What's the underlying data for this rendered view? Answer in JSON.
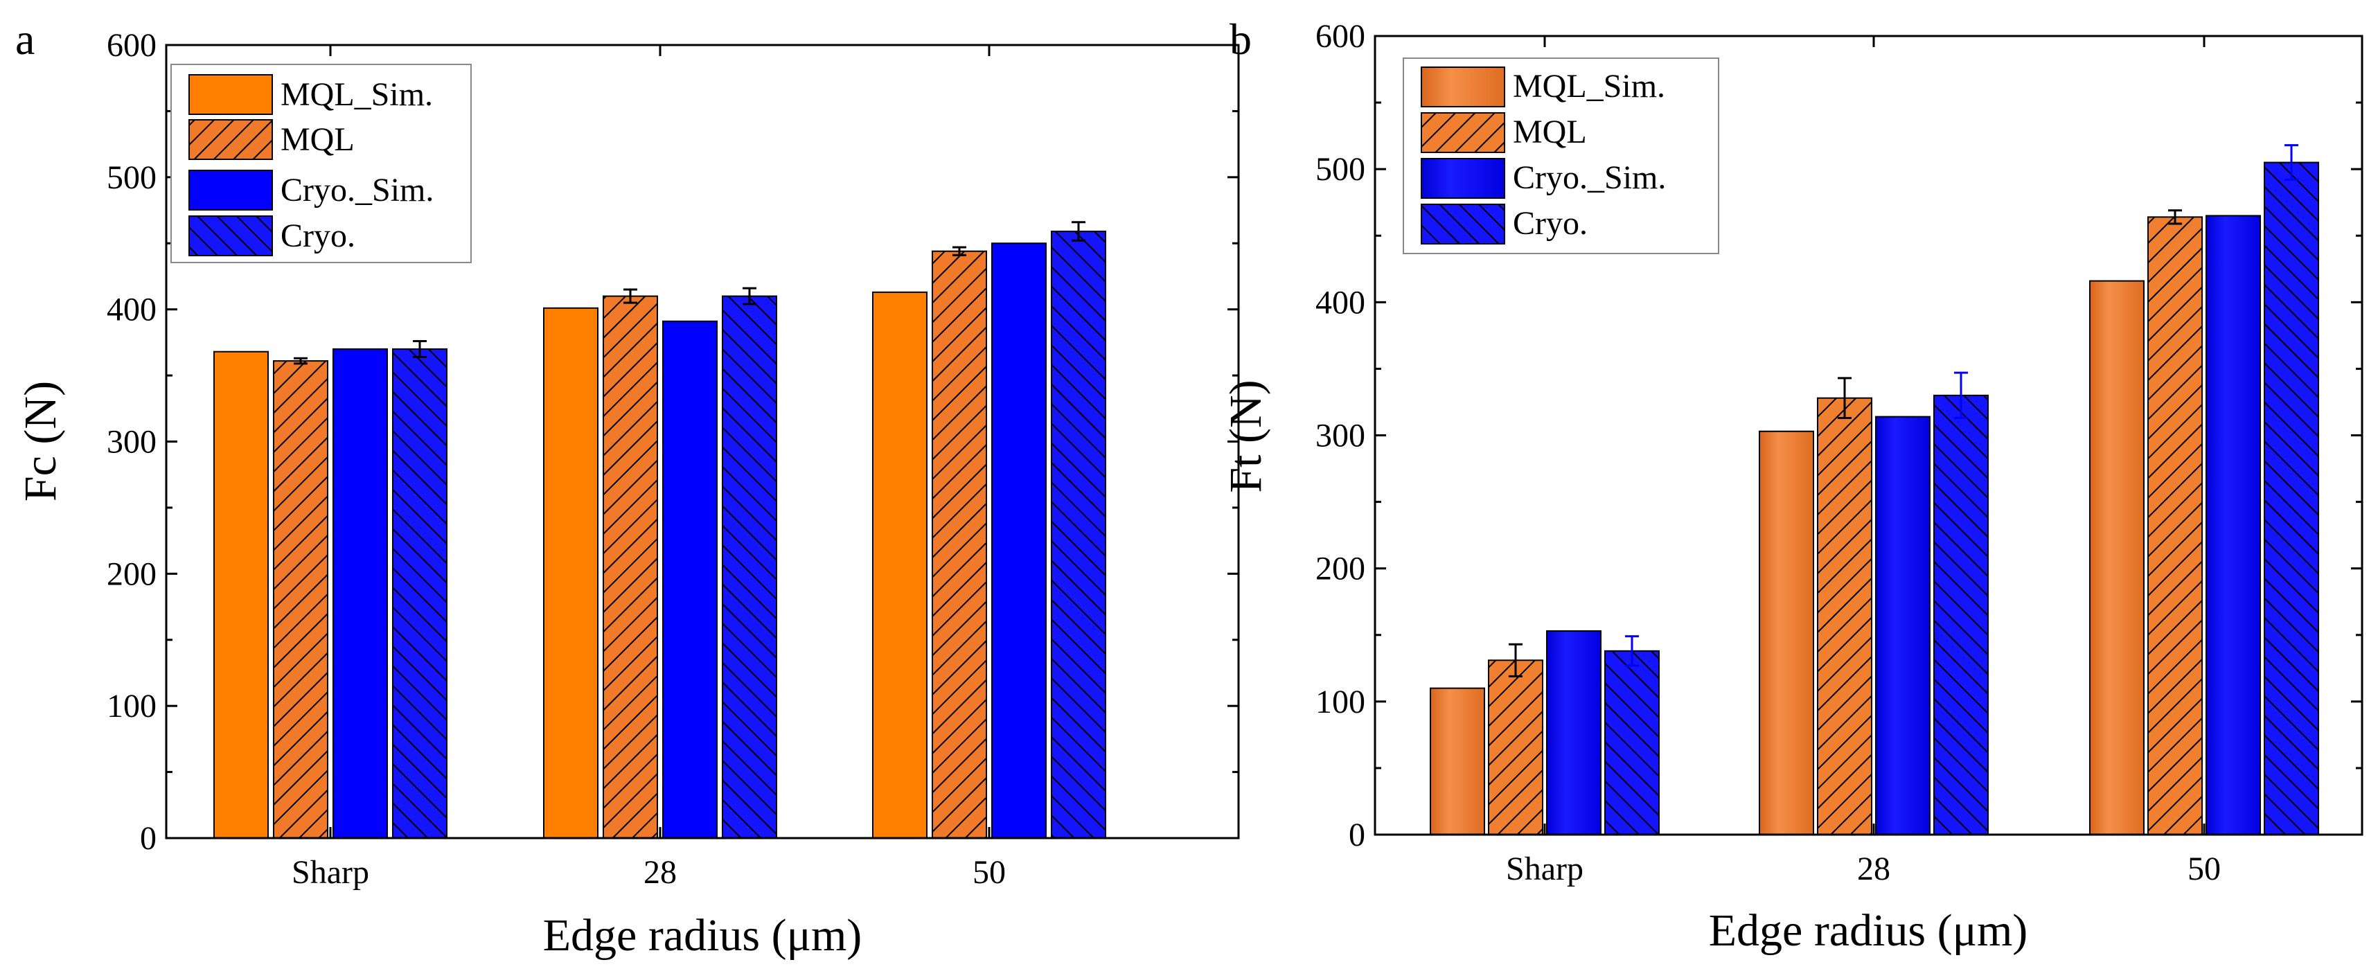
{
  "chart_data": [
    {
      "panel": "a",
      "type": "bar",
      "categories": [
        "Sharp",
        "28",
        "50"
      ],
      "series": [
        {
          "name": "MQL_Sim.",
          "key": "mql_sim",
          "values": [
            368,
            401,
            413
          ],
          "errors": [
            0,
            0,
            0
          ]
        },
        {
          "name": "MQL",
          "key": "mql",
          "values": [
            361,
            410,
            444
          ],
          "errors": [
            2,
            5,
            3
          ]
        },
        {
          "name": "Cryo._Sim.",
          "key": "cryo_sim",
          "values": [
            370,
            391,
            450
          ],
          "errors": [
            0,
            0,
            0
          ]
        },
        {
          "name": "Cryo.",
          "key": "cryo",
          "values": [
            370,
            410,
            459
          ],
          "errors": [
            6,
            6,
            7
          ]
        }
      ],
      "xlabel": "Edge radius (μm)",
      "ylabel": "Fc (N)",
      "ylim": [
        0,
        600
      ],
      "yticks": [
        0,
        100,
        200,
        300,
        400,
        500,
        600
      ],
      "legend_position": "top-left"
    },
    {
      "panel": "b",
      "type": "bar",
      "categories": [
        "Sharp",
        "28",
        "50"
      ],
      "series": [
        {
          "name": "MQL_Sim.",
          "key": "mql_sim",
          "values": [
            110,
            303,
            416
          ],
          "errors": [
            0,
            0,
            0
          ]
        },
        {
          "name": "MQL",
          "key": "mql",
          "values": [
            131,
            328,
            464
          ],
          "errors": [
            12,
            15,
            5
          ]
        },
        {
          "name": "Cryo._Sim.",
          "key": "cryo_sim",
          "values": [
            153,
            314,
            465
          ],
          "errors": [
            0,
            0,
            0
          ]
        },
        {
          "name": "Cryo.",
          "key": "cryo",
          "values": [
            138,
            330,
            505
          ],
          "errors": [
            11,
            17,
            13
          ]
        }
      ],
      "xlabel": "Edge radius (μm)",
      "ylabel": "Ft (N)",
      "ylim": [
        0,
        600
      ],
      "yticks": [
        0,
        100,
        200,
        300,
        400,
        500,
        600
      ],
      "legend_position": "top-left"
    }
  ],
  "colors": {
    "panel_a": {
      "mql_sim": "#ff8000",
      "mql": "#f07a2a",
      "cryo_sim": "#0000ff",
      "cryo": "#1414ff",
      "error_mql": "#000000",
      "error_cryo": "#000000"
    },
    "panel_b": {
      "mql_sim": "#f08030",
      "mql": "#f08030",
      "cryo_sim": "#0a0aff",
      "cryo": "#1414ff",
      "error_mql": "#000000",
      "error_cryo": "#0000ff"
    }
  }
}
